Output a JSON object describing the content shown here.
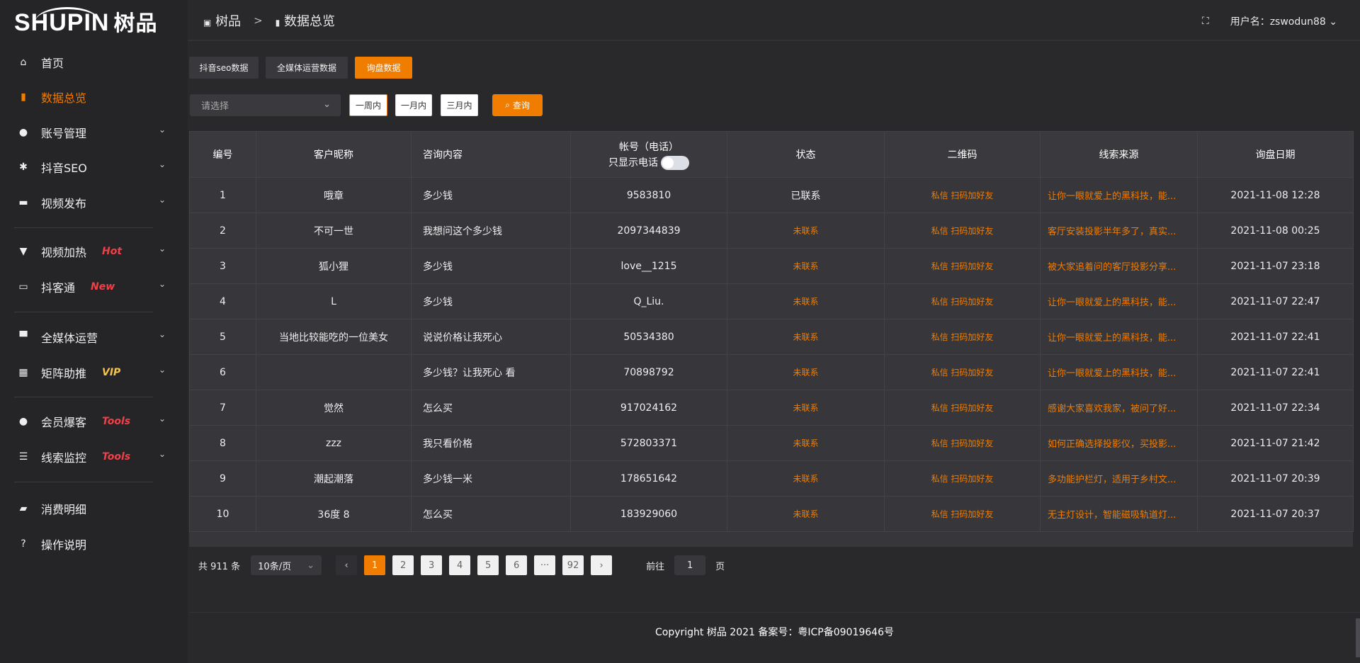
{
  "logo": {
    "text": "SHUPIN",
    "cn": "树品"
  },
  "header": {
    "breadcrumb": [
      "树品",
      "数据总览"
    ],
    "user_label": "用户名：",
    "username": "zswodun88"
  },
  "sidebar": {
    "items": [
      {
        "label": "首页",
        "icon": "home-icon",
        "glyph": "⌂"
      },
      {
        "label": "数据总览",
        "icon": "bar-chart-icon",
        "glyph": "▮",
        "active": true
      },
      {
        "label": "账号管理",
        "icon": "user-icon",
        "glyph": "●",
        "chev": true
      },
      {
        "label": "抖音SEO",
        "icon": "gear-icon",
        "glyph": "✱",
        "chev": true
      },
      {
        "label": "视频发布",
        "icon": "video-camera-icon",
        "glyph": "▬",
        "chev": true
      },
      {
        "label": "视频加热",
        "icon": "flag-icon",
        "glyph": "▼",
        "chev": true,
        "tag": "Hot"
      },
      {
        "label": "抖客通",
        "icon": "message-icon",
        "glyph": "▭",
        "chev": true,
        "tag": "New"
      },
      {
        "label": "全媒体运营",
        "icon": "monitor-icon",
        "glyph": "▀",
        "chev": true
      },
      {
        "label": "矩阵助推",
        "icon": "grid-icon",
        "glyph": "▦",
        "chev": true,
        "tag": "VIP"
      },
      {
        "label": "会员爆客",
        "icon": "member-icon",
        "glyph": "●",
        "chev": true,
        "tag": "Tools"
      },
      {
        "label": "线索监控",
        "icon": "sliders-icon",
        "glyph": "☰",
        "chev": true,
        "tag": "Tools"
      },
      {
        "label": "消费明细",
        "icon": "wallet-icon",
        "glyph": "▰"
      },
      {
        "label": "操作说明",
        "icon": "help-icon",
        "glyph": "?"
      }
    ]
  },
  "tabs": [
    "抖音seo数据",
    "全媒体运营数据",
    "询盘数据"
  ],
  "active_tab": 2,
  "filter": {
    "placeholder": "请选择",
    "ranges": [
      "一周内",
      "一月内",
      "三月内"
    ],
    "query": "查询"
  },
  "table": {
    "headers": [
      "编号",
      "客户昵称",
      "咨询内容",
      "帐号（电话）",
      "状态",
      "二维码",
      "线索来源",
      "询盘日期"
    ],
    "phone_toggle_label": "只显示电话",
    "phone_toggle_on": false,
    "rows": [
      [
        "1",
        "哦章",
        "多少钱",
        "9583810",
        "已联系",
        "私信 扫码加好友",
        "让你一眼就爱上的黑科技，能...",
        "2021-11-08 12:28"
      ],
      [
        "2",
        "不可一世",
        "我想问这个多少钱",
        "2097344839",
        "未联系",
        "私信 扫码加好友",
        "客厅安装投影半年多了，真实...",
        "2021-11-08 00:25"
      ],
      [
        "3",
        "狐小狸",
        "多少钱",
        "love__1215",
        "未联系",
        "私信 扫码加好友",
        "被大家追着问的客厅投影分享...",
        "2021-11-07 23:18"
      ],
      [
        "4",
        "L",
        "多少钱",
        "Q_Liu.",
        "未联系",
        "私信 扫码加好友",
        "让你一眼就爱上的黑科技，能...",
        "2021-11-07 22:47"
      ],
      [
        "5",
        "当地比较能吃的一位美女",
        "说说价格让我死心",
        "50534380",
        "未联系",
        "私信 扫码加好友",
        "让你一眼就爱上的黑科技，能...",
        "2021-11-07 22:41"
      ],
      [
        "6",
        "",
        "多少钱？让我死心 看",
        "70898792",
        "未联系",
        "私信 扫码加好友",
        "让你一眼就爱上的黑科技，能...",
        "2021-11-07 22:41"
      ],
      [
        "7",
        "觉然",
        "怎么买",
        "917024162",
        "未联系",
        "私信 扫码加好友",
        "感谢大家喜欢我家，被问了好...",
        "2021-11-07 22:34"
      ],
      [
        "8",
        "zzz",
        "我只看价格",
        "572803371",
        "未联系",
        "私信 扫码加好友",
        "如何正确选择投影仪，买投影...",
        "2021-11-07 21:42"
      ],
      [
        "9",
        "潮起潮落",
        "多少钱一米",
        "178651642",
        "未联系",
        "私信 扫码加好友",
        "多功能护栏灯，适用于乡村文...",
        "2021-11-07 20:39"
      ],
      [
        "10",
        "36度 8",
        "怎么买",
        "183929060",
        "未联系",
        "私信 扫码加好友",
        "无主灯设计，智能磁吸轨道灯...",
        "2021-11-07 20:37"
      ]
    ]
  },
  "pagination": {
    "total": "共 911 条",
    "page_size": "10条/页",
    "pages": [
      "1",
      "2",
      "3",
      "4",
      "5",
      "6",
      "···",
      "92"
    ],
    "current": "1",
    "goto_label": "前往",
    "goto_value": "1",
    "page_unit": "页"
  },
  "footer": {
    "copyright": "Copyright 树品 2021 备案号：粤ICP备09019646号"
  },
  "colors": {
    "accent": "#f07c00",
    "tag_red": "#f0414a",
    "tag_vip": "#f5c34a"
  }
}
